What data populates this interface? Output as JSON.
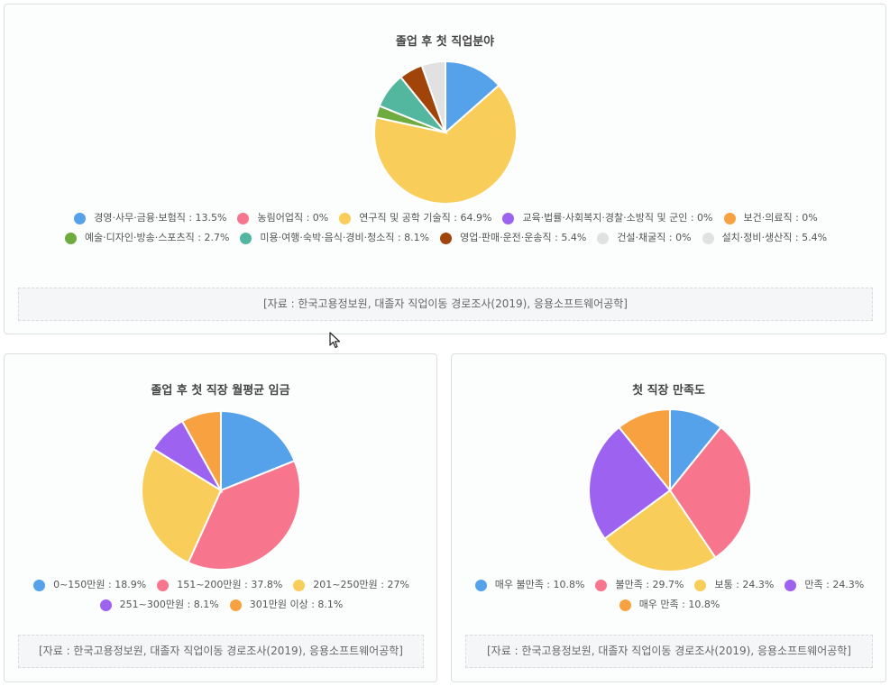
{
  "chart_data": [
    {
      "type": "pie",
      "title": "졸업 후 첫 직업분야",
      "labels": [
        "경영·사무·금융·보험직",
        "농림어업직",
        "연구직 및 공학 기술직",
        "교육·법률·사회복지·경찰·소방직 및 군인",
        "보건·의료직",
        "예술·디자인·방송·스포츠직",
        "미용·여행·숙박·음식·경비·청소직",
        "영업·판매·운전·운송직",
        "건설·채굴직",
        "설치·정비·생산직"
      ],
      "values": [
        13.5,
        0,
        64.9,
        0,
        0,
        2.7,
        8.1,
        5.4,
        0,
        5.4
      ],
      "colors": [
        "#55a2eb",
        "#f7768e",
        "#f9cd5a",
        "#9d63f0",
        "#f8a141",
        "#6fac3f",
        "#53b7a0",
        "#a04409",
        "#e1e1e1",
        "#e1e1e1"
      ],
      "legend_text": [
        "경영·사무·금융·보험직 : 13.5%",
        "농림어업직 : 0%",
        "연구직 및 공학 기술직 : 64.9%",
        "교육·법률·사회복지·경찰·소방직 및 군인 : 0%",
        "보건·의료직 : 0%",
        "예술·디자인·방송·스포츠직 : 2.7%",
        "미용·여행·숙박·음식·경비·청소직 : 8.1%",
        "영업·판매·운전·운송직 : 5.4%",
        "건설·채굴직 : 0%",
        "설치·정비·생산직 : 5.4%"
      ],
      "legend_position": "bottom",
      "source": "[자료 : 한국고용정보원, 대졸자 직업이동 경로조사(2019), 응용소프트웨어공학]"
    },
    {
      "type": "pie",
      "title": "졸업 후 첫 직장 월평균 임금",
      "labels": [
        "0~150만원",
        "151~200만원",
        "201~250만원",
        "251~300만원",
        "301만원 이상"
      ],
      "values": [
        18.9,
        37.8,
        27,
        8.1,
        8.1
      ],
      "colors": [
        "#55a2eb",
        "#f7768e",
        "#f9cd5a",
        "#9d63f0",
        "#f8a141"
      ],
      "legend_text": [
        "0~150만원 : 18.9%",
        "151~200만원 : 37.8%",
        "201~250만원 : 27%",
        "251~300만원 : 8.1%",
        "301만원 이상 : 8.1%"
      ],
      "legend_position": "bottom",
      "source": "[자료 : 한국고용정보원, 대졸자 직업이동 경로조사(2019), 응용소프트웨어공학]"
    },
    {
      "type": "pie",
      "title": "첫 직장 만족도",
      "labels": [
        "매우 불만족",
        "불만족",
        "보통",
        "만족",
        "매우 만족"
      ],
      "values": [
        10.8,
        29.7,
        24.3,
        24.3,
        10.8
      ],
      "colors": [
        "#55a2eb",
        "#f7768e",
        "#f9cd5a",
        "#9d63f0",
        "#f8a141"
      ],
      "legend_text": [
        "매우 불만족 : 10.8%",
        "불만족 : 29.7%",
        "보통 : 24.3%",
        "만족 : 24.3%",
        "매우 만족 : 10.8%"
      ],
      "legend_position": "bottom",
      "source": "[자료 : 한국고용정보원, 대졸자 직업이동 경로조사(2019), 응용소프트웨어공학]"
    }
  ]
}
